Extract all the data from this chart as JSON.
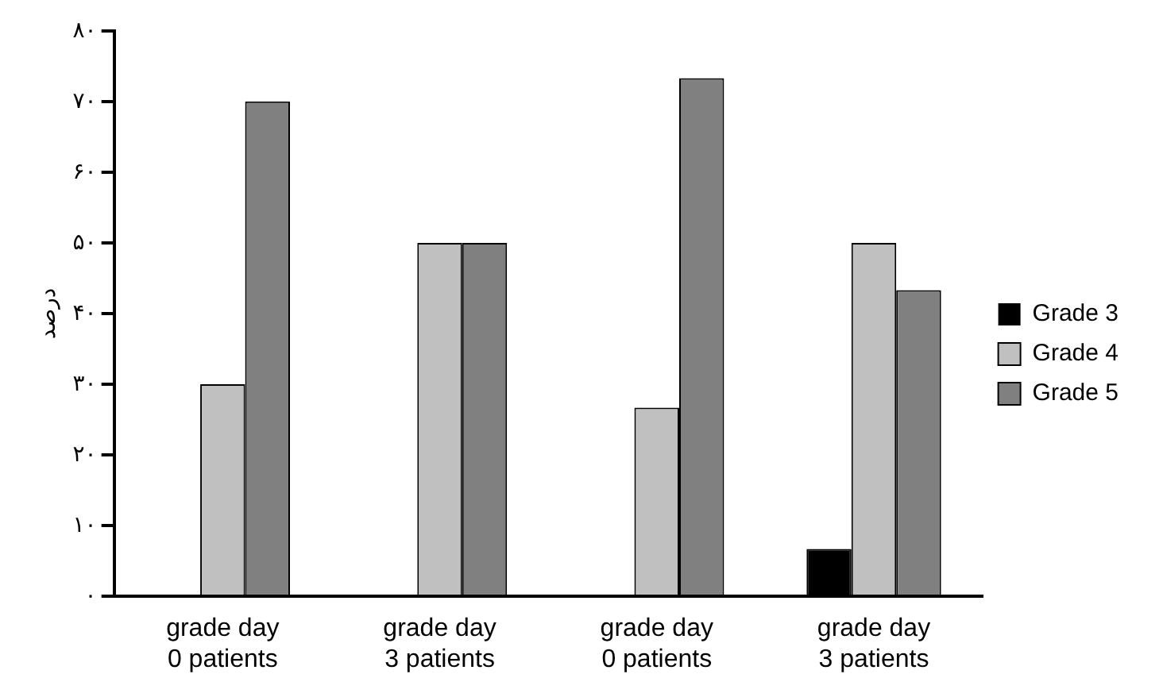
{
  "chart_data": {
    "type": "bar",
    "ylabel": "درصد",
    "categories": [
      "grade day 0 patients",
      "grade day 3 patients",
      "grade day 0 patients",
      "grade day 3 patients"
    ],
    "series": [
      {
        "name": "Grade 3",
        "color": "#000000",
        "values": [
          0,
          0,
          0,
          6.7
        ]
      },
      {
        "name": "Grade 4",
        "color": "#c0c0c0",
        "values": [
          30,
          50,
          26.7,
          50
        ]
      },
      {
        "name": "Grade 5",
        "color": "#808080",
        "values": [
          70,
          50,
          73.3,
          43.3
        ]
      }
    ],
    "ylim": [
      0,
      80
    ],
    "yticks": [
      {
        "value": 0,
        "label": "۰"
      },
      {
        "value": 10,
        "label": "۱۰"
      },
      {
        "value": 20,
        "label": "۲۰"
      },
      {
        "value": 30,
        "label": "۳۰"
      },
      {
        "value": 40,
        "label": "۴۰"
      },
      {
        "value": 50,
        "label": "۵۰"
      },
      {
        "value": 60,
        "label": "۶۰"
      },
      {
        "value": 70,
        "label": "۷۰"
      },
      {
        "value": 80,
        "label": "۸۰"
      }
    ],
    "grid": false,
    "legend": "right"
  }
}
